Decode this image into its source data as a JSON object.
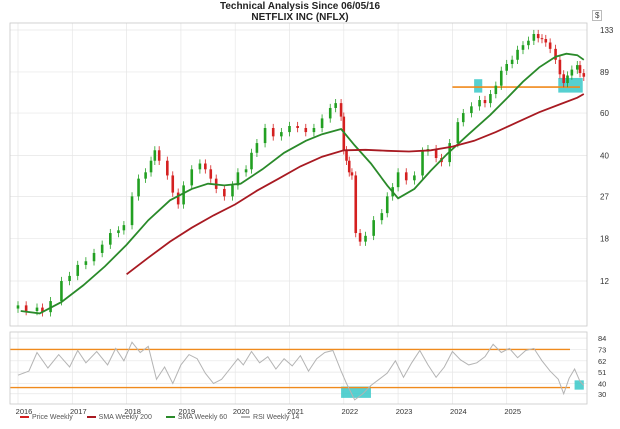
{
  "header": {
    "title": "Technical Analysis Since 06/05/16",
    "subtitle": "NETFLIX INC (NFLX)",
    "currency": "$"
  },
  "legend": {
    "price": "Price Weekly",
    "sma200": "SMA Weekly 200",
    "sma60": "SMA Weekly 60",
    "rsi": "RSI Weekly 14"
  },
  "colors": {
    "up": "#22a022",
    "down": "#d42020",
    "sma200": "#a81a22",
    "sma60": "#2a8a2a",
    "rsi": "#b4b4b4",
    "level": "#f08a1c",
    "zone": "#38c8c8",
    "grid": "#e6e6e6"
  },
  "chart_data": [
    {
      "type": "line",
      "name": "price-panel",
      "title": "Technical Analysis Since 06/05/16",
      "subtitle": "NETFLIX INC (NFLX)",
      "y_scale": "log",
      "y_ticks": [
        12,
        18,
        27,
        40,
        60,
        89,
        133
      ],
      "x_ticks": [
        "2016",
        "2017",
        "2018",
        "2019",
        "2020",
        "2021",
        "2022",
        "2023",
        "2024",
        "2025"
      ],
      "x_range": [
        2016.0,
        2026.0
      ],
      "grid": true,
      "legend_position": "bottom",
      "series": [
        {
          "name": "Price Weekly",
          "style": "candles",
          "points": [
            [
              2016.0,
              9.5
            ],
            [
              2016.15,
              9.0
            ],
            [
              2016.35,
              9.3
            ],
            [
              2016.45,
              8.9
            ],
            [
              2016.6,
              9.9
            ],
            [
              2016.8,
              12.0
            ],
            [
              2016.95,
              12.6
            ],
            [
              2017.1,
              14.0
            ],
            [
              2017.25,
              14.5
            ],
            [
              2017.4,
              15.7
            ],
            [
              2017.55,
              17.0
            ],
            [
              2017.7,
              19.0
            ],
            [
              2017.85,
              19.5
            ],
            [
              2017.95,
              20.5
            ],
            [
              2018.1,
              27.0
            ],
            [
              2018.22,
              32.0
            ],
            [
              2018.35,
              34.0
            ],
            [
              2018.45,
              38.0
            ],
            [
              2018.52,
              42.0
            ],
            [
              2018.6,
              38.0
            ],
            [
              2018.75,
              33.0
            ],
            [
              2018.85,
              28.0
            ],
            [
              2018.95,
              25.0
            ],
            [
              2019.05,
              30.0
            ],
            [
              2019.2,
              35.0
            ],
            [
              2019.35,
              37.0
            ],
            [
              2019.45,
              35.0
            ],
            [
              2019.55,
              32.0
            ],
            [
              2019.65,
              29.0
            ],
            [
              2019.8,
              27.0
            ],
            [
              2019.95,
              30.0
            ],
            [
              2020.05,
              34.0
            ],
            [
              2020.2,
              35.0
            ],
            [
              2020.3,
              41.0
            ],
            [
              2020.4,
              45.0
            ],
            [
              2020.55,
              52.0
            ],
            [
              2020.7,
              48.0
            ],
            [
              2020.85,
              50.0
            ],
            [
              2021.0,
              53.0
            ],
            [
              2021.15,
              52.0
            ],
            [
              2021.3,
              50.0
            ],
            [
              2021.45,
              52.0
            ],
            [
              2021.6,
              57.0
            ],
            [
              2021.75,
              63.0
            ],
            [
              2021.85,
              66.0
            ],
            [
              2021.95,
              58.0
            ],
            [
              2022.0,
              42.0
            ],
            [
              2022.05,
              38.0
            ],
            [
              2022.1,
              34.0
            ],
            [
              2022.15,
              33.0
            ],
            [
              2022.22,
              19.0
            ],
            [
              2022.3,
              17.5
            ],
            [
              2022.4,
              18.5
            ],
            [
              2022.55,
              21.5
            ],
            [
              2022.7,
              23.0
            ],
            [
              2022.8,
              27.0
            ],
            [
              2022.9,
              29.5
            ],
            [
              2023.0,
              34.0
            ],
            [
              2023.15,
              31.5
            ],
            [
              2023.3,
              33.0
            ],
            [
              2023.45,
              41.5
            ],
            [
              2023.55,
              42.5
            ],
            [
              2023.7,
              39.0
            ],
            [
              2023.8,
              37.5
            ],
            [
              2023.95,
              45.0
            ],
            [
              2024.1,
              55.0
            ],
            [
              2024.2,
              60.0
            ],
            [
              2024.35,
              64.0
            ],
            [
              2024.5,
              68.0
            ],
            [
              2024.6,
              66.0
            ],
            [
              2024.7,
              72.0
            ],
            [
              2024.8,
              78.0
            ],
            [
              2024.9,
              90.0
            ],
            [
              2025.0,
              96.0
            ],
            [
              2025.1,
              100.0
            ],
            [
              2025.2,
              110.0
            ],
            [
              2025.3,
              115.0
            ],
            [
              2025.4,
              120.0
            ],
            [
              2025.5,
              128.0
            ],
            [
              2025.58,
              123.0
            ],
            [
              2025.65,
              122.0
            ],
            [
              2025.72,
              118.0
            ],
            [
              2025.8,
              111.0
            ],
            [
              2025.9,
              100.0
            ],
            [
              2025.98,
              87.0
            ],
            [
              2026.05,
              80.0
            ],
            [
              2026.12,
              86.0
            ],
            [
              2026.2,
              91.0
            ],
            [
              2026.3,
              95.0
            ],
            [
              2026.35,
              88.0
            ],
            [
              2026.42,
              85.0
            ]
          ]
        },
        {
          "name": "SMA Weekly 60",
          "style": "line",
          "points": [
            [
              2016.05,
              9.0
            ],
            [
              2016.4,
              8.8
            ],
            [
              2016.8,
              9.8
            ],
            [
              2017.2,
              11.5
            ],
            [
              2017.6,
              13.8
            ],
            [
              2018.0,
              17.0
            ],
            [
              2018.4,
              21.5
            ],
            [
              2018.8,
              26.0
            ],
            [
              2019.2,
              29.0
            ],
            [
              2019.5,
              30.5
            ],
            [
              2019.8,
              30.0
            ],
            [
              2020.1,
              30.5
            ],
            [
              2020.5,
              35.0
            ],
            [
              2020.9,
              41.0
            ],
            [
              2021.3,
              46.0
            ],
            [
              2021.6,
              49.0
            ],
            [
              2021.95,
              51.5
            ],
            [
              2022.2,
              44.0
            ],
            [
              2022.5,
              37.0
            ],
            [
              2022.8,
              30.0
            ],
            [
              2023.0,
              26.5
            ],
            [
              2023.3,
              29.0
            ],
            [
              2023.6,
              34.5
            ],
            [
              2023.9,
              40.5
            ],
            [
              2024.3,
              49.0
            ],
            [
              2024.7,
              59.0
            ],
            [
              2025.0,
              69.0
            ],
            [
              2025.3,
              81.0
            ],
            [
              2025.6,
              93.0
            ],
            [
              2025.9,
              103.0
            ],
            [
              2026.1,
              106.0
            ],
            [
              2026.3,
              104.5
            ],
            [
              2026.42,
              100.0
            ]
          ]
        },
        {
          "name": "SMA Weekly 200",
          "style": "line",
          "points": [
            [
              2018.0,
              12.8
            ],
            [
              2018.4,
              15.0
            ],
            [
              2018.8,
              17.5
            ],
            [
              2019.2,
              20.0
            ],
            [
              2019.6,
              22.5
            ],
            [
              2020.0,
              25.0
            ],
            [
              2020.4,
              28.5
            ],
            [
              2020.8,
              32.0
            ],
            [
              2021.2,
              36.0
            ],
            [
              2021.6,
              39.5
            ],
            [
              2022.0,
              42.0
            ],
            [
              2022.4,
              42.2
            ],
            [
              2022.8,
              41.8
            ],
            [
              2023.2,
              41.5
            ],
            [
              2023.6,
              42.0
            ],
            [
              2024.0,
              43.5
            ],
            [
              2024.4,
              46.0
            ],
            [
              2024.8,
              50.0
            ],
            [
              2025.2,
              55.0
            ],
            [
              2025.6,
              60.5
            ],
            [
              2026.0,
              65.5
            ],
            [
              2026.3,
              69.5
            ],
            [
              2026.42,
              72.0
            ]
          ]
        }
      ],
      "annotations": [
        {
          "type": "hline",
          "y": 77,
          "x_from": 2024.0,
          "x_to": 2026.5
        },
        {
          "type": "zone",
          "x_from": 2024.4,
          "x_to": 2024.55,
          "y_from": 73,
          "y_to": 83
        },
        {
          "type": "zone",
          "x_from": 2025.95,
          "x_to": 2026.4,
          "y_from": 73,
          "y_to": 84
        }
      ]
    },
    {
      "type": "line",
      "name": "rsi-panel",
      "y_ticks": [
        30,
        40,
        51,
        62,
        73,
        84
      ],
      "y_range": [
        22,
        88
      ],
      "x_range": [
        2016.0,
        2026.0
      ],
      "grid": true,
      "series": [
        {
          "name": "RSI Weekly 14",
          "points": [
            [
              2016.0,
              48
            ],
            [
              2016.2,
              52
            ],
            [
              2016.35,
              70
            ],
            [
              2016.55,
              55
            ],
            [
              2016.75,
              68
            ],
            [
              2016.95,
              56
            ],
            [
              2017.1,
              72
            ],
            [
              2017.25,
              60
            ],
            [
              2017.45,
              71
            ],
            [
              2017.65,
              58
            ],
            [
              2017.8,
              74
            ],
            [
              2017.95,
              62
            ],
            [
              2018.1,
              80
            ],
            [
              2018.25,
              70
            ],
            [
              2018.4,
              76
            ],
            [
              2018.55,
              44
            ],
            [
              2018.7,
              56
            ],
            [
              2018.85,
              40
            ],
            [
              2019.0,
              58
            ],
            [
              2019.15,
              68
            ],
            [
              2019.3,
              64
            ],
            [
              2019.45,
              50
            ],
            [
              2019.6,
              40
            ],
            [
              2019.75,
              44
            ],
            [
              2019.9,
              54
            ],
            [
              2020.05,
              64
            ],
            [
              2020.15,
              58
            ],
            [
              2020.3,
              71
            ],
            [
              2020.45,
              60
            ],
            [
              2020.6,
              66
            ],
            [
              2020.75,
              54
            ],
            [
              2020.9,
              64
            ],
            [
              2021.05,
              57
            ],
            [
              2021.2,
              67
            ],
            [
              2021.35,
              52
            ],
            [
              2021.5,
              64
            ],
            [
              2021.65,
              70
            ],
            [
              2021.8,
              72
            ],
            [
              2021.95,
              52
            ],
            [
              2022.05,
              40
            ],
            [
              2022.2,
              24
            ],
            [
              2022.35,
              30
            ],
            [
              2022.5,
              38
            ],
            [
              2022.65,
              44
            ],
            [
              2022.8,
              50
            ],
            [
              2022.95,
              62
            ],
            [
              2023.1,
              46
            ],
            [
              2023.25,
              60
            ],
            [
              2023.4,
              72
            ],
            [
              2023.55,
              58
            ],
            [
              2023.7,
              46
            ],
            [
              2023.85,
              56
            ],
            [
              2024.0,
              71
            ],
            [
              2024.15,
              63
            ],
            [
              2024.3,
              58
            ],
            [
              2024.45,
              60
            ],
            [
              2024.6,
              66
            ],
            [
              2024.75,
              78
            ],
            [
              2024.9,
              70
            ],
            [
              2025.05,
              74
            ],
            [
              2025.2,
              65
            ],
            [
              2025.35,
              72
            ],
            [
              2025.5,
              74
            ],
            [
              2025.65,
              62
            ],
            [
              2025.8,
              52
            ],
            [
              2025.95,
              44
            ],
            [
              2026.05,
              30
            ],
            [
              2026.15,
              45
            ],
            [
              2026.25,
              54
            ],
            [
              2026.35,
              42
            ],
            [
              2026.42,
              38
            ]
          ]
        }
      ],
      "annotations": [
        {
          "type": "hline",
          "y": 73
        },
        {
          "type": "hline",
          "y": 36
        },
        {
          "type": "zone",
          "x_from": 2021.95,
          "x_to": 2022.5,
          "y_from": 26,
          "y_to": 37
        },
        {
          "type": "zone",
          "x_from": 2026.25,
          "x_to": 2026.42,
          "y_from": 34,
          "y_to": 43
        }
      ]
    }
  ]
}
